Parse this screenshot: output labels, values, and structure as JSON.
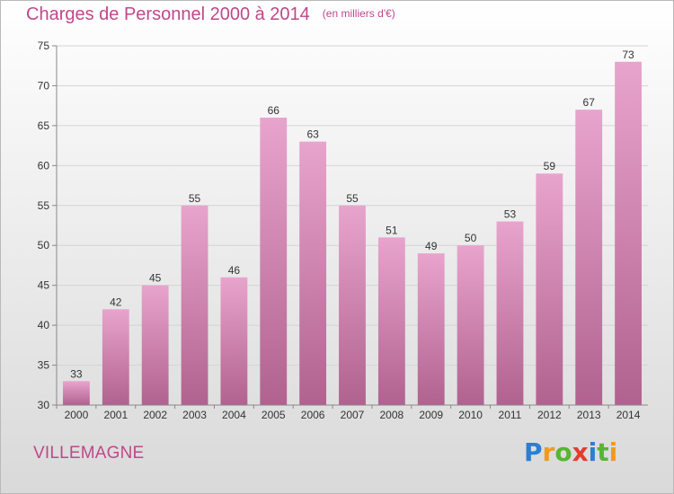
{
  "chart_data": {
    "type": "bar",
    "title": "Charges de Personnel 2000 à 2014",
    "subtitle": "(en milliers d'€)",
    "categories": [
      "2000",
      "2001",
      "2002",
      "2003",
      "2004",
      "2005",
      "2006",
      "2007",
      "2008",
      "2009",
      "2010",
      "2011",
      "2012",
      "2013",
      "2014"
    ],
    "values": [
      33,
      42,
      45,
      55,
      46,
      66,
      63,
      55,
      51,
      49,
      50,
      53,
      59,
      67,
      73
    ],
    "ylim": [
      30,
      75
    ],
    "yticks": [
      30,
      35,
      40,
      45,
      50,
      55,
      60,
      65,
      70,
      75
    ],
    "grid": true,
    "colors": {
      "bar_top": "#e8a4cd",
      "bar_bottom": "#b1628f",
      "title": "#c0478a"
    }
  },
  "commune": "VILLEMAGNE",
  "logo": {
    "letters": [
      "P",
      "r",
      "o",
      "x",
      "i",
      "t",
      "i"
    ],
    "colors": [
      "#2a7fd4",
      "#f19a1e",
      "#58b531",
      "#e33c2f",
      "#2a7fd4",
      "#58b531",
      "#f19a1e"
    ]
  }
}
